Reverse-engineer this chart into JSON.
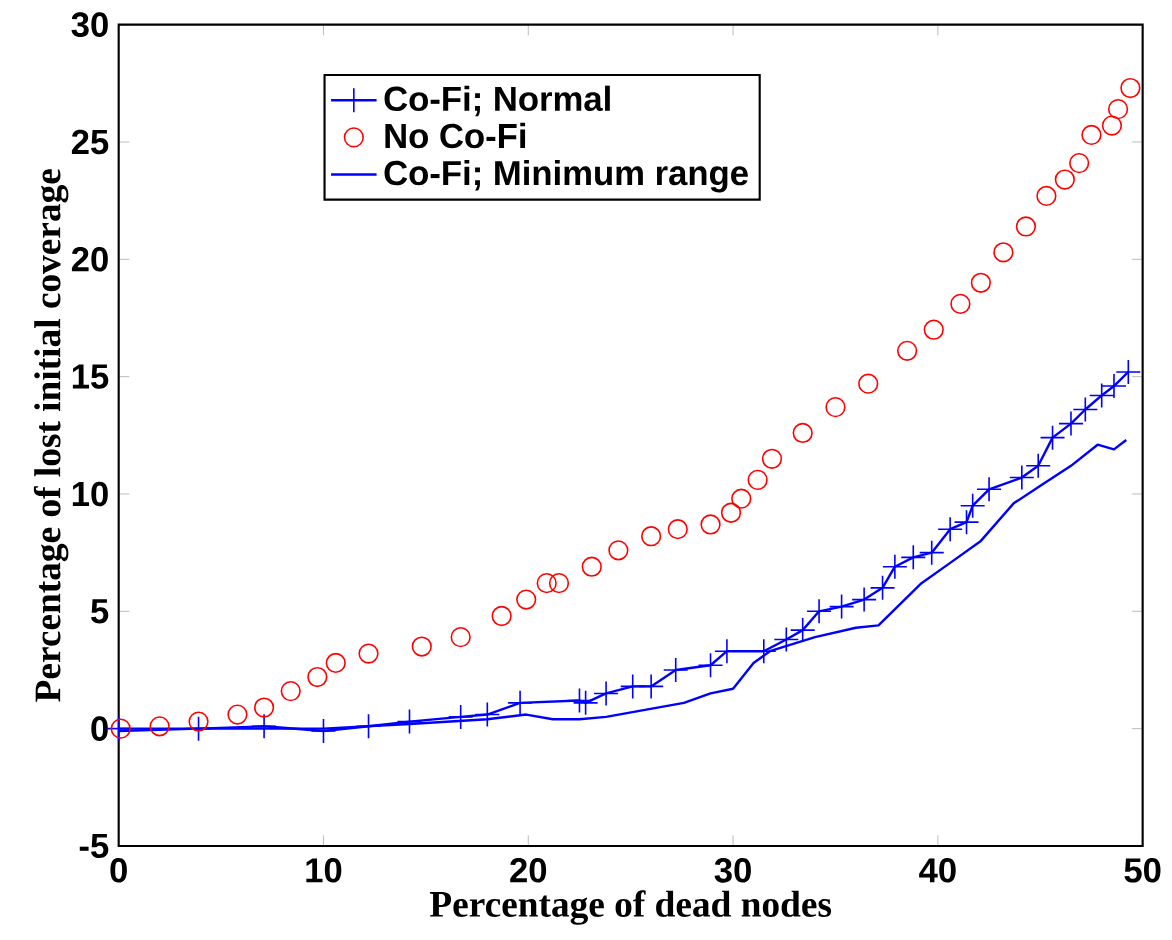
{
  "chart_data": {
    "type": "line",
    "xlabel": "Percentage of dead nodes",
    "ylabel": "Percentage of lost initial coverage",
    "xlim": [
      0,
      50
    ],
    "ylim": [
      -5,
      30
    ],
    "xticks": [
      0,
      10,
      20,
      30,
      40,
      50
    ],
    "yticks": [
      -5,
      0,
      5,
      10,
      15,
      20,
      25,
      30
    ],
    "grid": false,
    "legend": "top left",
    "series": [
      {
        "name": "Co-Fi; Normal",
        "color": "#0000ff",
        "marker": "cross",
        "line_style": "solid",
        "x": [
          0,
          3.9,
          7.1,
          10.0,
          12.2,
          14.2,
          16.7,
          18.0,
          19.6,
          22.5,
          22.8,
          23.8,
          25.1,
          26.0,
          27.2,
          28.9,
          29.7,
          31.5,
          32.6,
          33.4,
          34.2,
          35.3,
          36.4,
          37.3,
          37.9,
          38.8,
          39.7,
          40.6,
          41.4,
          41.7,
          42.5,
          44.1,
          44.9,
          45.6,
          46.5,
          47.2,
          48.0,
          48.6,
          49.3
        ],
        "values": [
          0,
          0,
          0.1,
          -0.1,
          0.1,
          0.3,
          0.5,
          0.6,
          1.1,
          1.2,
          1.1,
          1.5,
          1.8,
          1.8,
          2.5,
          2.7,
          3.3,
          3.3,
          3.8,
          4.2,
          5.0,
          5.2,
          5.5,
          6.0,
          6.9,
          7.3,
          7.5,
          8.5,
          8.8,
          9.5,
          10.2,
          10.7,
          11.2,
          12.4,
          13.0,
          13.6,
          14.2,
          14.6,
          15.2
        ]
      },
      {
        "name": "No Co-Fi",
        "type": "scatter",
        "color": "#ff0000",
        "marker": "circle",
        "x": [
          0.1,
          2.0,
          3.9,
          5.8,
          7.1,
          8.4,
          9.7,
          10.6,
          12.2,
          14.8,
          16.7,
          18.7,
          19.9,
          20.9,
          21.5,
          23.1,
          24.4,
          26.0,
          27.3,
          28.9,
          29.9,
          30.4,
          31.2,
          31.9,
          33.4,
          35.0,
          36.6,
          38.5,
          39.8,
          41.1,
          42.1,
          43.2,
          44.3,
          45.3,
          46.2,
          46.9,
          47.5,
          48.5,
          48.8,
          49.4
        ],
        "values": [
          0,
          0.1,
          0.3,
          0.6,
          0.9,
          1.6,
          2.2,
          2.8,
          3.2,
          3.5,
          3.9,
          4.8,
          5.5,
          6.2,
          6.2,
          6.9,
          7.6,
          8.2,
          8.5,
          8.7,
          9.2,
          9.8,
          10.6,
          11.5,
          12.6,
          13.7,
          14.7,
          16.1,
          17.0,
          18.1,
          19.0,
          20.3,
          21.4,
          22.7,
          23.4,
          24.1,
          25.3,
          25.7,
          26.4,
          27.3
        ]
      },
      {
        "name": "Co-Fi; Minimum range",
        "color": "#0000ff",
        "marker": "none",
        "line_style": "solid",
        "x": [
          0,
          3.9,
          10.0,
          14.2,
          18.0,
          19.9,
          21.2,
          22.5,
          23.8,
          25.7,
          27.6,
          28.9,
          30.0,
          31.0,
          31.8,
          34.0,
          36.0,
          37.1,
          39.2,
          40.5,
          42.1,
          43.7,
          45.1,
          46.5,
          47.8,
          48.6,
          49.2
        ],
        "values": [
          -0.1,
          0,
          0,
          0.2,
          0.4,
          0.6,
          0.4,
          0.4,
          0.5,
          0.8,
          1.1,
          1.5,
          1.7,
          2.8,
          3.3,
          3.9,
          4.3,
          4.4,
          6.2,
          7.0,
          8.0,
          9.6,
          10.4,
          11.2,
          12.1,
          11.9,
          12.3
        ]
      }
    ]
  }
}
